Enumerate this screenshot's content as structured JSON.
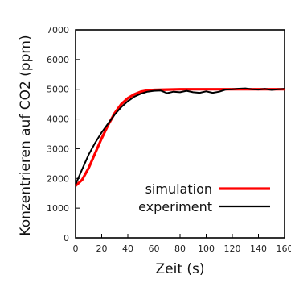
{
  "chart_data": {
    "type": "line",
    "xlabel": "Zeit (s)",
    "ylabel": "Konzentrieren auf CO2 (ppm)",
    "xlim": [
      0,
      160
    ],
    "ylim": [
      0,
      7000
    ],
    "xticks": [
      "0",
      "20",
      "40",
      "60",
      "80",
      "100",
      "120",
      "140",
      "160"
    ],
    "yticks": [
      "0",
      "1000",
      "2000",
      "3000",
      "4000",
      "5000",
      "6000",
      "7000"
    ],
    "grid": false,
    "legend_position": "lower-right",
    "series": [
      {
        "name": "simulation",
        "color": "#ff0000",
        "x": [
          0,
          5,
          10,
          15,
          20,
          25,
          30,
          35,
          40,
          45,
          50,
          55,
          60,
          70,
          80,
          90,
          100,
          110,
          120,
          130,
          140,
          150,
          160
        ],
        "values": [
          1750,
          1950,
          2350,
          2850,
          3350,
          3800,
          4200,
          4500,
          4700,
          4830,
          4920,
          4960,
          4980,
          4990,
          5000,
          5000,
          5000,
          5000,
          5000,
          5000,
          5000,
          5000,
          5000
        ]
      },
      {
        "name": "experiment",
        "color": "#000000",
        "x": [
          0,
          5,
          10,
          15,
          20,
          25,
          30,
          35,
          40,
          45,
          50,
          55,
          60,
          65,
          70,
          75,
          80,
          85,
          90,
          95,
          100,
          105,
          110,
          115,
          120,
          125,
          130,
          135,
          140,
          145,
          150,
          155,
          160
        ],
        "values": [
          1800,
          2300,
          2800,
          3200,
          3550,
          3850,
          4150,
          4400,
          4600,
          4750,
          4850,
          4920,
          4950,
          4960,
          4870,
          4920,
          4900,
          4950,
          4900,
          4880,
          4930,
          4880,
          4920,
          4990,
          5000,
          5020,
          5030,
          5000,
          4990,
          5010,
          4980,
          5000,
          5010
        ]
      }
    ]
  }
}
